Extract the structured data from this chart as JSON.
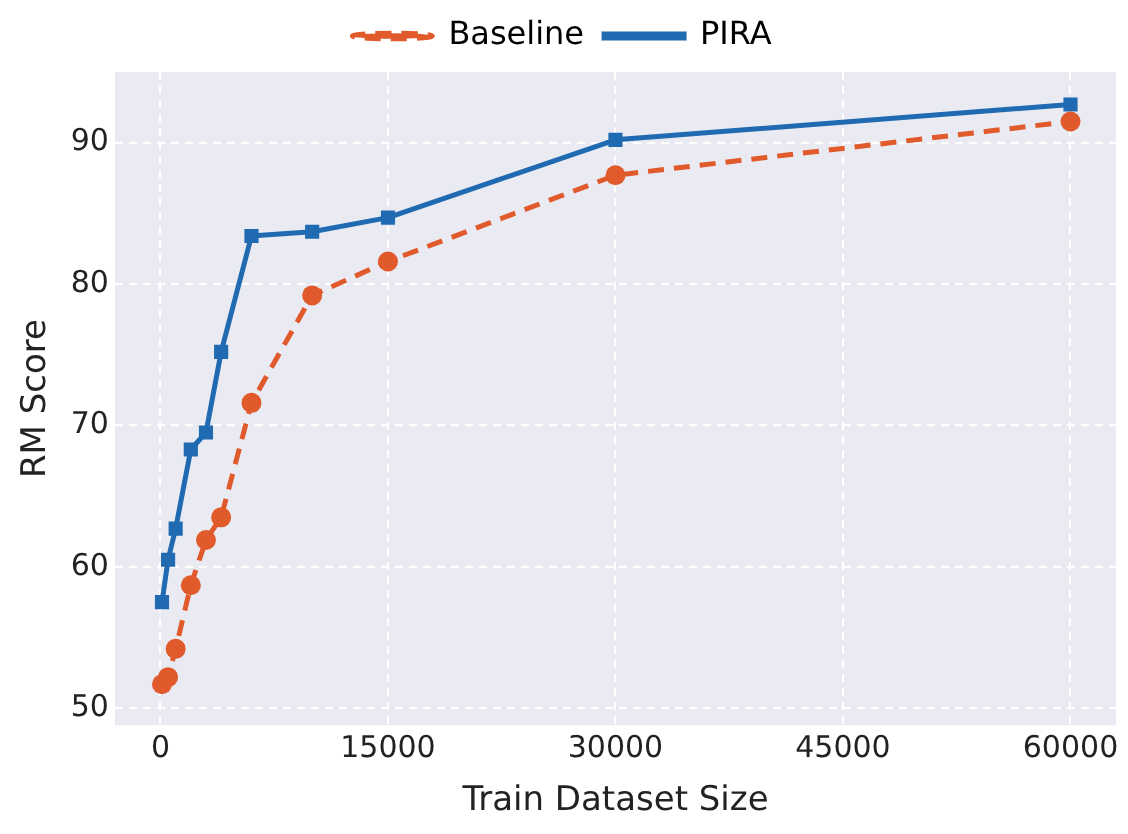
{
  "chart_data": {
    "type": "line",
    "xlabel": "Train Dataset Size",
    "ylabel": "RM Score",
    "x": [
      100,
      500,
      1000,
      2000,
      3000,
      4000,
      6000,
      10000,
      15000,
      30000,
      60000
    ],
    "series": [
      {
        "name": "Baseline",
        "color": "#e05a2b",
        "marker": "circle",
        "line_style": "dashed",
        "values": [
          51.7,
          52.2,
          54.2,
          58.7,
          61.9,
          63.5,
          71.6,
          79.2,
          81.6,
          87.7,
          91.5
        ]
      },
      {
        "name": "PIRA",
        "color": "#1f6ab0",
        "marker": "square",
        "line_style": "solid",
        "values": [
          57.5,
          60.5,
          62.7,
          68.3,
          69.5,
          75.2,
          83.4,
          83.7,
          84.7,
          90.2,
          92.7
        ]
      }
    ],
    "xlim": [
      -3000,
      63000
    ],
    "xticks": [
      0,
      15000,
      30000,
      45000,
      60000
    ],
    "ylim": [
      48.8,
      95
    ],
    "yticks": [
      50,
      60,
      70,
      80,
      90
    ],
    "grid": true,
    "legend": "top"
  }
}
